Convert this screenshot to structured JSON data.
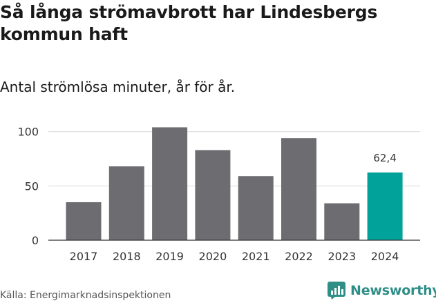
{
  "header": {
    "title": "Så långa strömavbrott har Lindesbergs kommun haft",
    "subtitle": "Antal strömlösa minuter, år för år."
  },
  "footer": {
    "source": "Källa: Energimarknadsinspektionen",
    "brand": "Newsworthy"
  },
  "colors": {
    "bar": "#6d6c70",
    "highlight": "#00a29a",
    "grid": "#d9d9d9",
    "axis": "#333333",
    "brand": "#2f8e86"
  },
  "chart_data": {
    "type": "bar",
    "title": "Så långa strömavbrott har Lindesbergs kommun haft",
    "subtitle": "Antal strömlösa minuter, år för år.",
    "xlabel": "",
    "ylabel": "",
    "categories": [
      "2017",
      "2018",
      "2019",
      "2020",
      "2021",
      "2022",
      "2023",
      "2024"
    ],
    "values": [
      35,
      68,
      104,
      83,
      59,
      94,
      34,
      62.4
    ],
    "highlight_index": 7,
    "data_labels": [
      {
        "index": 7,
        "text": "62,4"
      }
    ],
    "ylim": [
      0,
      110
    ],
    "yticks": [
      0,
      50,
      100
    ],
    "grid": true,
    "legend": "none"
  }
}
